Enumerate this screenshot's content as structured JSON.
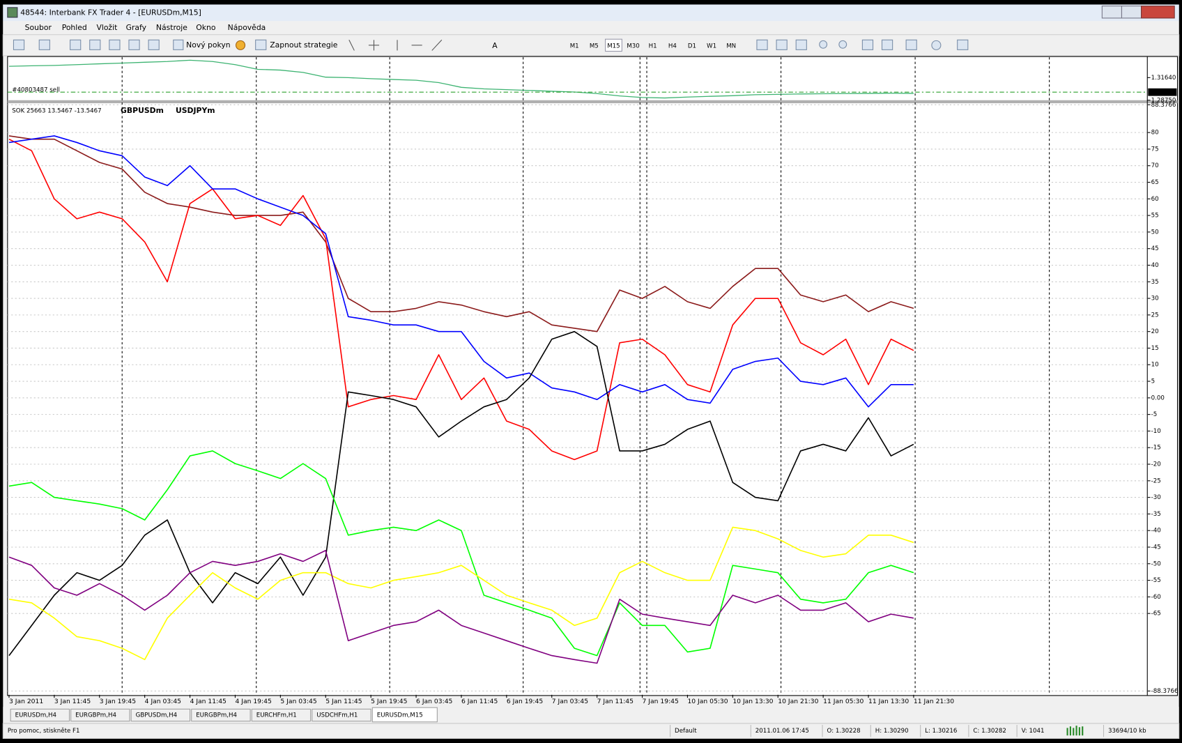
{
  "window": {
    "title": "48544: Interbank FX Trader 4 - [EURUSDm,M15]"
  },
  "menu": [
    "Soubor",
    "Pohled",
    "Vložit",
    "Grafy",
    "Nástroje",
    "Okno",
    "Nápověda"
  ],
  "toolbar": {
    "order_button": "Nový pokyn",
    "strategy_button": "Zapnout strategie",
    "timeframes": [
      "M1",
      "M5",
      "M15",
      "M30",
      "H1",
      "H4",
      "D1",
      "W1",
      "MN"
    ],
    "text_tool": "A"
  },
  "price_chart": {
    "type": "line",
    "color": "#3cb371",
    "order_label": "#40803487 sell",
    "current_price": {
      "value": 1.29782,
      "label": "1.29782"
    },
    "ylim": [
      1.2875,
      1.3424
    ],
    "yticks": [
      {
        "value": 1.3164,
        "label": "1.31640"
      },
      {
        "value": 1.2875,
        "label": "1.28750"
      }
    ],
    "values": [
      1.3308,
      1.3315,
      1.332,
      1.333,
      1.334,
      1.335,
      1.336,
      1.337,
      1.3386,
      1.337,
      1.333,
      1.327,
      1.326,
      1.323,
      1.317,
      1.3164,
      1.315,
      1.314,
      1.313,
      1.31,
      1.304,
      1.302,
      1.301,
      1.3,
      1.299,
      1.298,
      1.296,
      1.293,
      1.291,
      1.2904,
      1.2915,
      1.2925,
      1.2933,
      1.2945,
      1.295,
      1.2955,
      1.2958,
      1.296,
      1.2962,
      1.2965,
      1.2962
    ]
  },
  "chart_data": {
    "type": "line",
    "title": "SOK 25663 13.5467 -13.5467",
    "categories": [
      "3 Jan 2011",
      null,
      "3 Jan 11:45",
      null,
      "3 Jan 19:45",
      null,
      "4 Jan 03:45",
      null,
      "4 Jan 11:45",
      null,
      "4 Jan 19:45",
      null,
      "5 Jan 03:45",
      null,
      "5 Jan 11:45",
      null,
      "5 Jan 19:45",
      null,
      "6 Jan 03:45",
      null,
      "6 Jan 11:45",
      null,
      "6 Jan 19:45",
      null,
      "7 Jan 03:45",
      null,
      "7 Jan 11:45",
      null,
      "7 Jan 19:45",
      null,
      "10 Jan 05:30",
      null,
      "10 Jan 13:30",
      null,
      "10 Jan 21:30",
      null,
      "11 Jan 05:30",
      null,
      "11 Jan 13:30",
      null,
      "11 Jan 21:30"
    ],
    "ylim": [
      -88.3766,
      88.3766
    ],
    "yticks": [
      88.3766,
      80,
      75,
      70,
      65,
      60,
      55,
      50,
      45,
      40,
      35,
      30,
      25,
      20,
      15,
      10,
      5,
      {
        "value": 0,
        "label": "0.00"
      },
      -5,
      -10,
      -15,
      -20,
      -25,
      -30,
      -35,
      -40,
      -45,
      -50,
      -55,
      -60,
      -65,
      -88.3766
    ],
    "grid": true,
    "series": [
      {
        "color": "#8b1a1a",
        "values": [
          79,
          78,
          78,
          74.5,
          71,
          69,
          62,
          58.6,
          57.5,
          56,
          55,
          55,
          55,
          56,
          47,
          30,
          26,
          26,
          27,
          29,
          28,
          26,
          24.5,
          26,
          22,
          21,
          20,
          32.5,
          30,
          33.6,
          29,
          27,
          33.6,
          39,
          39,
          31,
          29,
          31,
          26,
          29,
          27
        ]
      },
      {
        "name": "GBPUSDm",
        "color": "#ff0000",
        "values": [
          78,
          74.5,
          60,
          54,
          56,
          54,
          47,
          35,
          58.6,
          63,
          54,
          55,
          52,
          61,
          48,
          -2.7,
          -0.5,
          0.7,
          -0.5,
          13,
          -0.5,
          6,
          -7,
          -9.5,
          -16,
          -18.6,
          -16,
          16.6,
          17.7,
          13,
          4,
          1.8,
          22,
          30,
          30,
          16.6,
          13,
          17.7,
          4,
          17.7,
          14.3
        ]
      },
      {
        "color": "#0000ff",
        "values": [
          77,
          78,
          79,
          77,
          74.5,
          73,
          66.6,
          64,
          70,
          63,
          63,
          60,
          57.5,
          55,
          49.5,
          24.5,
          23.4,
          22,
          22,
          20,
          20,
          11,
          6,
          7.5,
          3,
          1.8,
          -0.5,
          4,
          1.8,
          4,
          -0.5,
          -1.6,
          8.6,
          11,
          12,
          5,
          4,
          6,
          -2.7,
          4,
          4
        ]
      },
      {
        "name": "USDJPYm",
        "color": "#000000",
        "values": [
          -77.7,
          -68.6,
          -59.5,
          -52.7,
          -55,
          -50.5,
          -41.4,
          -36.8,
          -52.7,
          -61.8,
          -52.7,
          -56,
          -48,
          -59.5,
          -48,
          1.8,
          0.7,
          -0.5,
          -2.7,
          -11.8,
          -7,
          -2.7,
          -0.5,
          6,
          17.7,
          20,
          15.5,
          -16,
          -16,
          -14,
          -9.5,
          -7,
          -25.5,
          -30,
          -31,
          -16,
          -14,
          -16,
          -6,
          -17.5,
          -14
        ]
      },
      {
        "color": "#00ff00",
        "values": [
          -26.6,
          -25.5,
          -30,
          -31,
          -32,
          -33.4,
          -36.8,
          -27.7,
          -17.5,
          -16,
          -19.8,
          -22,
          -24.3,
          -19.8,
          -24.3,
          -41.4,
          -40,
          -39,
          -40,
          -36.8,
          -40,
          -59.5,
          -61.8,
          -64,
          -66.4,
          -75.5,
          -77.7,
          -61.8,
          -68.6,
          -68.6,
          -76.6,
          -75.5,
          -50.5,
          -51.6,
          -52.7,
          -60.7,
          -61.8,
          -60.7,
          -52.7,
          -50.5,
          -52.7
        ]
      },
      {
        "color": "#ffff00",
        "values": [
          -60.7,
          -61.8,
          -66.4,
          -72,
          -73.2,
          -75.5,
          -78.9,
          -66.4,
          -59.5,
          -52.7,
          -57.3,
          -60.7,
          -55,
          -52.7,
          -52.7,
          -56,
          -57.3,
          -55,
          -53.9,
          -52.7,
          -50.5,
          -55,
          -59.5,
          -61.8,
          -64,
          -68.6,
          -66.4,
          -52.7,
          -49.3,
          -52.7,
          -55,
          -55,
          -39,
          -40,
          -42.5,
          -46,
          -48,
          -47,
          -41.4,
          -41.4,
          -43.6
        ]
      },
      {
        "color": "#800080",
        "values": [
          -48,
          -50.5,
          -57.3,
          -59.5,
          -56,
          -59.5,
          -64,
          -59.5,
          -52.7,
          -49.3,
          -50.5,
          -49.3,
          -47,
          -49.3,
          -46,
          -73.2,
          -70.9,
          -68.6,
          -67.5,
          -64,
          -68.6,
          -70.9,
          -73.2,
          -75.5,
          -77.7,
          -78.9,
          -80,
          -60.7,
          -65.2,
          -66.4,
          -67.5,
          -68.6,
          -59.5,
          -61.8,
          -59.5,
          -64,
          -64,
          -61.8,
          -67.5,
          -65.2,
          -66.4
        ]
      }
    ]
  },
  "tabs": {
    "active": 6,
    "items": [
      "EURUSDm,H4",
      "EURGBPm,H4",
      "GBPUSDm,H4",
      "EURGBPm,H4",
      "EURCHFm,H1",
      "USDCHFm,H1",
      "EURUSDm,M15"
    ]
  },
  "status_bar": [
    "Pro pomoc, stiskněte F1",
    "Default",
    "2011.01.06 17:45",
    "O: 1.30228",
    "H: 1.30290",
    "L: 1.30216",
    "C: 1.30282",
    "V: 1041",
    "33694/10 kb"
  ]
}
